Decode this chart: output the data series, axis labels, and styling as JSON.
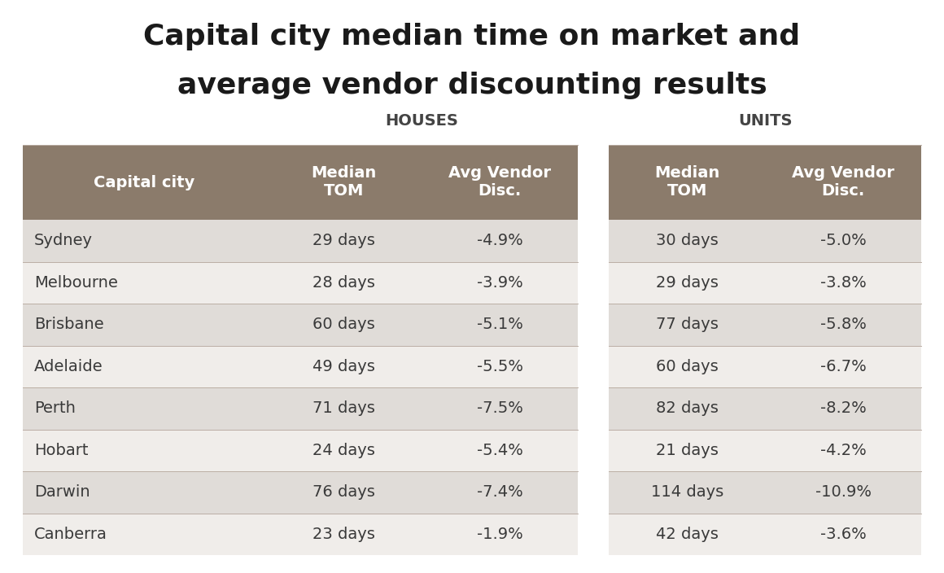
{
  "title_line1": "Capital city median time on market and",
  "title_line2": "average vendor discounting results",
  "houses_label": "HOUSES",
  "units_label": "UNITS",
  "col_headers": [
    "Capital city",
    "Median\nTOM",
    "Avg Vendor\nDisc.",
    "Median\nTOM",
    "Avg Vendor\nDisc."
  ],
  "cities": [
    "Sydney",
    "Melbourne",
    "Brisbane",
    "Adelaide",
    "Perth",
    "Hobart",
    "Darwin",
    "Canberra"
  ],
  "houses_tom": [
    "29 days",
    "28 days",
    "60 days",
    "49 days",
    "71 days",
    "24 days",
    "76 days",
    "23 days"
  ],
  "houses_disc": [
    "-4.9%",
    "-3.9%",
    "-5.1%",
    "-5.5%",
    "-7.5%",
    "-5.4%",
    "-7.4%",
    "-1.9%"
  ],
  "units_tom": [
    "30 days",
    "29 days",
    "77 days",
    "60 days",
    "82 days",
    "21 days",
    "114 days",
    "42 days"
  ],
  "units_disc": [
    "-5.0%",
    "-3.8%",
    "-5.8%",
    "-6.7%",
    "-8.2%",
    "-4.2%",
    "-10.9%",
    "-3.6%"
  ],
  "header_bg": "#8B7B6B",
  "header_text": "#FFFFFF",
  "row_bg_odd": "#E0DCD8",
  "row_bg_even": "#F0EDEA",
  "gap_color": "#FFFFFF",
  "title_color": "#1a1a1a",
  "body_text_color": "#3a3a3a",
  "background_color": "#FFFFFF",
  "section_label_color": "#444444",
  "title_fontsize": 26,
  "header_fontsize": 14,
  "body_fontsize": 14,
  "section_fontsize": 14
}
